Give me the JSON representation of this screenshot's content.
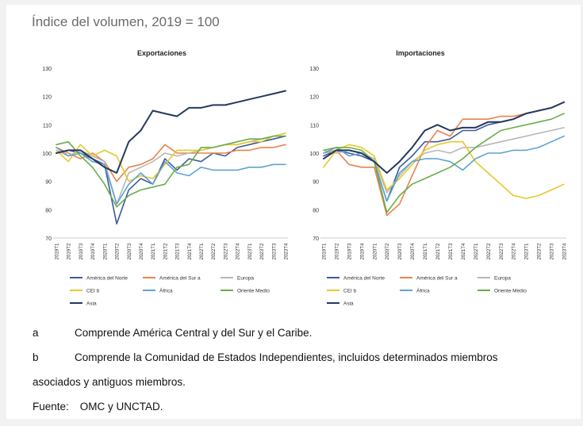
{
  "page": {
    "title": "Índice del volumen, 2019 = 100"
  },
  "notes": {
    "a_key": "a",
    "a_text": "Comprende América Central y del Sur y el Caribe.",
    "b_key": "b",
    "b_text": "Comprende la Comunidad de Estados Independientes, incluidos determinados miembros",
    "b_text_cont": "asociados y antiguos miembros.",
    "source_label": "Fuente:",
    "source_value": "OMC y UNCTAD."
  },
  "chart_data": [
    {
      "type": "line",
      "title": "Exportaciones",
      "xlabel": "",
      "ylabel": "",
      "ylim": [
        70,
        130
      ],
      "yticks": [
        70,
        80,
        90,
        100,
        110,
        120,
        130
      ],
      "grid": false,
      "legend_position": "bottom",
      "categories": [
        "2019T1",
        "2019T2",
        "2019T3",
        "2019T4",
        "2020T1",
        "2020T2",
        "2020T3",
        "2020T4",
        "2021T1",
        "2021T2",
        "2021T3",
        "2021T4",
        "2022T1",
        "2022T2",
        "2022T3",
        "2022T4",
        "2023T1",
        "2023T2",
        "2023T3",
        "2023T4"
      ],
      "series": [
        {
          "name": "América del Norte",
          "color": "#3d5a9e",
          "values": [
            100,
            101,
            100,
            98,
            96,
            75,
            87,
            91,
            89,
            98,
            94,
            98,
            97,
            100,
            99,
            102,
            103,
            104,
            105,
            106
          ]
        },
        {
          "name": "América del Sur a",
          "color": "#e8844a",
          "values": [
            102,
            100,
            98,
            100,
            97,
            90,
            95,
            96,
            98,
            103,
            100,
            100,
            100,
            100,
            100,
            101,
            101,
            102,
            102,
            103
          ]
        },
        {
          "name": "Europa",
          "color": "#b7b7b7",
          "values": [
            101,
            99,
            101,
            99,
            97,
            82,
            93,
            95,
            97,
            100,
            99,
            100,
            101,
            102,
            103,
            103,
            104,
            105,
            106,
            107
          ]
        },
        {
          "name": "CEI b",
          "color": "#e8c82a",
          "values": [
            101,
            97,
            103,
            99,
            101,
            99,
            90,
            92,
            91,
            96,
            101,
            101,
            101,
            102,
            103,
            103,
            104,
            104,
            106,
            107
          ]
        },
        {
          "name": "África",
          "color": "#5ea4cf",
          "values": [
            102,
            99,
            100,
            97,
            96,
            82,
            89,
            93,
            89,
            97,
            93,
            92,
            95,
            94,
            94,
            94,
            95,
            95,
            96,
            96
          ]
        },
        {
          "name": "Oriente Medio",
          "color": "#6aad4a",
          "values": [
            103,
            104,
            99,
            95,
            89,
            81,
            85,
            87,
            88,
            89,
            95,
            96,
            102,
            102,
            103,
            104,
            105,
            105,
            106,
            106
          ]
        },
        {
          "name": "Asia",
          "color": "#24395f",
          "values": [
            100,
            101,
            101,
            98,
            95,
            93,
            104,
            108,
            115,
            114,
            113,
            116,
            116,
            117,
            117,
            118,
            119,
            120,
            121,
            122
          ]
        }
      ]
    },
    {
      "type": "line",
      "title": "Importaciones",
      "xlabel": "",
      "ylabel": "",
      "ylim": [
        70,
        130
      ],
      "yticks": [
        70,
        80,
        90,
        100,
        110,
        120,
        130
      ],
      "grid": false,
      "legend_position": "bottom",
      "categories": [
        "2019T1",
        "2019T2",
        "2019T3",
        "2019T4",
        "2020T1",
        "2020T2",
        "2020T3",
        "2020T4",
        "2021T1",
        "2021T2",
        "2021T3",
        "2021T4",
        "2022T1",
        "2022T2",
        "2022T3",
        "2022T4",
        "2023T1",
        "2023T2",
        "2023T3",
        "2023T4"
      ],
      "series": [
        {
          "name": "América del Norte",
          "color": "#3d5a9e",
          "values": [
            99,
            101,
            100,
            99,
            97,
            83,
            95,
            99,
            104,
            104,
            105,
            108,
            108,
            110,
            111,
            112,
            114,
            115,
            116,
            118
          ]
        },
        {
          "name": "América del Sur a",
          "color": "#e8844a",
          "values": [
            100,
            101,
            96,
            95,
            95,
            78,
            82,
            92,
            102,
            108,
            106,
            112,
            112,
            112,
            113,
            113,
            114,
            115,
            116,
            118
          ]
        },
        {
          "name": "Europa",
          "color": "#b7b7b7",
          "values": [
            101,
            100,
            101,
            100,
            98,
            86,
            92,
            97,
            100,
            101,
            100,
            102,
            102,
            103,
            104,
            105,
            106,
            107,
            108,
            109
          ]
        },
        {
          "name": "CEI b",
          "color": "#e8c82a",
          "values": [
            95,
            101,
            103,
            102,
            99,
            87,
            91,
            96,
            101,
            103,
            104,
            104,
            97,
            93,
            89,
            85,
            84,
            85,
            87,
            89
          ]
        },
        {
          "name": "África",
          "color": "#5ea4cf",
          "values": [
            100,
            102,
            99,
            100,
            97,
            83,
            93,
            97,
            98,
            98,
            97,
            94,
            98,
            100,
            100,
            101,
            101,
            102,
            104,
            106
          ]
        },
        {
          "name": "Oriente Medio",
          "color": "#6aad4a",
          "values": [
            101,
            102,
            102,
            101,
            97,
            79,
            85,
            89,
            91,
            93,
            95,
            98,
            102,
            105,
            108,
            109,
            110,
            111,
            112,
            114
          ]
        },
        {
          "name": "Asia",
          "color": "#24395f",
          "values": [
            98,
            101,
            101,
            100,
            97,
            93,
            97,
            102,
            108,
            110,
            108,
            109,
            109,
            111,
            111,
            112,
            114,
            115,
            116,
            118
          ]
        }
      ]
    }
  ]
}
